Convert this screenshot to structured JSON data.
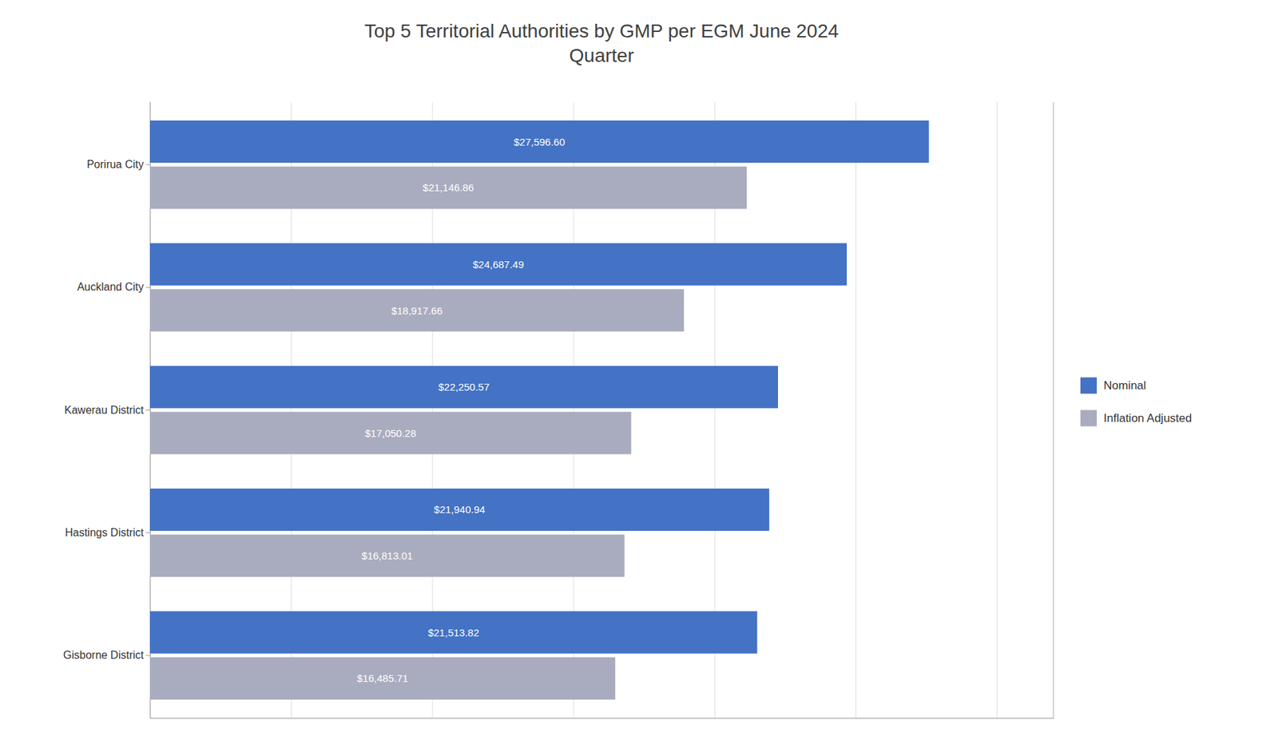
{
  "chart_data": {
    "type": "bar",
    "orientation": "horizontal",
    "title": "Top 5 Territorial Authorities by GMP per EGM June 2024\nQuarter",
    "categories": [
      "Porirua City",
      "Auckland City",
      "Kawerau District",
      "Hastings District",
      "Gisborne District"
    ],
    "series": [
      {
        "name": "Nominal",
        "color": "#4472C4",
        "values": [
          27596.6,
          24687.49,
          22250.57,
          21940.94,
          21513.82
        ],
        "value_labels": [
          "$27,596.60",
          "$24,687.49",
          "$22,250.57",
          "$21,940.94",
          "$21,513.82"
        ]
      },
      {
        "name": "Inflation Adjusted",
        "color": "#A9ACBE",
        "values": [
          21146.86,
          18917.66,
          17050.28,
          16813.01,
          16485.71
        ],
        "value_labels": [
          "$21,146.86",
          "$18,917.66",
          "$17,050.28",
          "$16,813.01",
          "$16,485.71"
        ]
      }
    ],
    "xlim": [
      0,
      32000
    ],
    "xticks": [
      5000,
      10000,
      15000,
      20000,
      25000,
      30000
    ],
    "grid": true,
    "legend": "right",
    "data_labels": true,
    "tick_labels": "y"
  }
}
